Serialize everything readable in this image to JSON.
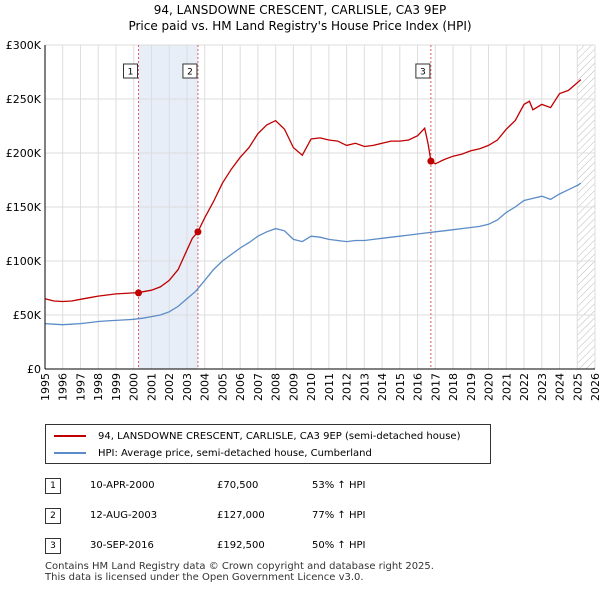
{
  "title_line1": "94, LANSDOWNE CRESCENT, CARLISLE, CA3 9EP",
  "title_line2": "Price paid vs. HM Land Registry's House Price Index (HPI)",
  "colors": {
    "price": "#c00000",
    "hpi": "#5b8cc8",
    "grid": "#dddddd",
    "plot_bg": "#e8eef8",
    "vline": "#e06060",
    "future_hatch": "#bbbbbb"
  },
  "legend": {
    "price_label": "94, LANSDOWNE CRESCENT, CARLISLE, CA3 9EP (semi-detached house)",
    "hpi_label": "HPI: Average price, semi-detached house, Cumberland"
  },
  "sales": [
    {
      "num": "1",
      "date": "10-APR-2000",
      "price": "£70,500",
      "hpi": "53% ↑ HPI"
    },
    {
      "num": "2",
      "date": "12-AUG-2003",
      "price": "£127,000",
      "hpi": "77% ↑ HPI"
    },
    {
      "num": "3",
      "date": "30-SEP-2016",
      "price": "£192,500",
      "hpi": "50% ↑ HPI"
    }
  ],
  "footer_line1": "Contains HM Land Registry data © Crown copyright and database right 2025.",
  "footer_line2": "This data is licensed under the Open Government Licence v3.0.",
  "chart_data": {
    "type": "line",
    "title": "94, LANSDOWNE CRESCENT, CARLISLE, CA3 9EP",
    "subtitle": "Price paid vs. HM Land Registry's House Price Index (HPI)",
    "xlim": [
      1995,
      2026
    ],
    "ylim": [
      0,
      300000
    ],
    "y_ticks": [
      0,
      50000,
      100000,
      150000,
      200000,
      250000,
      300000
    ],
    "y_tick_labels": [
      "£0",
      "£50K",
      "£100K",
      "£150K",
      "£200K",
      "£250K",
      "£300K"
    ],
    "x_ticks": [
      1995,
      1996,
      1997,
      1998,
      1999,
      2000,
      2001,
      2002,
      2003,
      2004,
      2005,
      2006,
      2007,
      2008,
      2009,
      2010,
      2011,
      2012,
      2013,
      2014,
      2015,
      2016,
      2017,
      2018,
      2019,
      2020,
      2021,
      2022,
      2023,
      2024,
      2025,
      2026
    ],
    "sale_markers": [
      {
        "label": "1",
        "x": 2000.27,
        "y": 70500
      },
      {
        "label": "2",
        "x": 2003.62,
        "y": 127000
      },
      {
        "label": "3",
        "x": 2016.75,
        "y": 192500
      }
    ],
    "series": [
      {
        "name": "94, LANSDOWNE CRESCENT, CARLISLE, CA3 9EP (semi-detached house)",
        "x": [
          1995,
          1995.5,
          1996,
          1996.5,
          1997,
          1997.5,
          1998,
          1998.5,
          1999,
          1999.5,
          2000,
          2000.27,
          2000.5,
          2001,
          2001.5,
          2002,
          2002.5,
          2003,
          2003.3,
          2003.62,
          2004,
          2004.5,
          2005,
          2005.5,
          2006,
          2006.5,
          2007,
          2007.5,
          2008,
          2008.5,
          2009,
          2009.5,
          2010,
          2010.5,
          2011,
          2011.5,
          2012,
          2012.5,
          2013,
          2013.5,
          2014,
          2014.5,
          2015,
          2015.5,
          2016,
          2016.4,
          2016.6,
          2016.75,
          2017,
          2017.5,
          2018,
          2018.5,
          2019,
          2019.5,
          2020,
          2020.5,
          2021,
          2021.5,
          2022,
          2022.3,
          2022.5,
          2023,
          2023.5,
          2024,
          2024.5,
          2025,
          2025.2
        ],
        "values": [
          65000,
          63000,
          62500,
          63000,
          64500,
          66000,
          67500,
          68500,
          69500,
          70000,
          70500,
          70500,
          71500,
          73000,
          76000,
          82000,
          92000,
          110000,
          121000,
          127000,
          140000,
          155000,
          172000,
          185000,
          196000,
          205000,
          218000,
          226000,
          230000,
          222000,
          205000,
          198000,
          213000,
          214000,
          212000,
          211000,
          207000,
          209000,
          206000,
          207000,
          209000,
          211000,
          211000,
          212000,
          216000,
          223000,
          208000,
          192500,
          190000,
          194000,
          197000,
          199000,
          202000,
          204000,
          207000,
          212000,
          222000,
          230000,
          245000,
          248000,
          240000,
          245000,
          242000,
          255000,
          258000,
          265000,
          268000
        ]
      },
      {
        "name": "HPI: Average price, semi-detached house, Cumberland",
        "x": [
          1995,
          1995.5,
          1996,
          1996.5,
          1997,
          1997.5,
          1998,
          1998.5,
          1999,
          1999.5,
          2000,
          2000.5,
          2001,
          2001.5,
          2002,
          2002.5,
          2003,
          2003.5,
          2004,
          2004.5,
          2005,
          2005.5,
          2006,
          2006.5,
          2007,
          2007.5,
          2008,
          2008.5,
          2009,
          2009.5,
          2010,
          2010.5,
          2011,
          2011.5,
          2012,
          2012.5,
          2013,
          2013.5,
          2014,
          2014.5,
          2015,
          2015.5,
          2016,
          2016.5,
          2017,
          2017.5,
          2018,
          2018.5,
          2019,
          2019.5,
          2020,
          2020.5,
          2021,
          2021.5,
          2022,
          2022.5,
          2023,
          2023.5,
          2024,
          2024.5,
          2025,
          2025.2
        ],
        "values": [
          42000,
          41500,
          41000,
          41500,
          42000,
          43000,
          44000,
          44500,
          45000,
          45500,
          46000,
          47000,
          48500,
          50000,
          53000,
          58000,
          65000,
          72000,
          82000,
          92000,
          100000,
          106000,
          112000,
          117000,
          123000,
          127000,
          130000,
          128000,
          120000,
          118000,
          123000,
          122000,
          120000,
          119000,
          118000,
          119000,
          119000,
          120000,
          121000,
          122000,
          123000,
          124000,
          125000,
          126000,
          127000,
          128000,
          129000,
          130000,
          131000,
          132000,
          134000,
          138000,
          145000,
          150000,
          156000,
          158000,
          160000,
          157000,
          162000,
          166000,
          170000,
          172000
        ]
      }
    ]
  }
}
